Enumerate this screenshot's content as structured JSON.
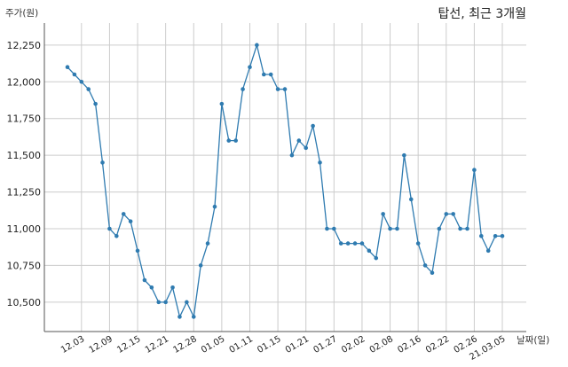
{
  "chart_data": {
    "type": "line",
    "title": "탑선, 최근 3개월",
    "ylabel": "주가(원)",
    "xlabel": "날짜(일)",
    "ylim": [
      10300,
      12400
    ],
    "yticks": [
      10500,
      10750,
      11000,
      11250,
      11500,
      11750,
      12000,
      12250
    ],
    "ytick_labels": [
      "10,500",
      "10,750",
      "11,000",
      "11,250",
      "11,500",
      "11,750",
      "12,000",
      "12,250"
    ],
    "xticks": [
      {
        "label": "12.03",
        "index": 2
      },
      {
        "label": "12.09",
        "index": 6
      },
      {
        "label": "12.15",
        "index": 10
      },
      {
        "label": "12.21",
        "index": 14
      },
      {
        "label": "12.28",
        "index": 18
      },
      {
        "label": "01.05",
        "index": 22
      },
      {
        "label": "01.11",
        "index": 26
      },
      {
        "label": "01.15",
        "index": 30
      },
      {
        "label": "01.21",
        "index": 34
      },
      {
        "label": "01.27",
        "index": 38
      },
      {
        "label": "02.02",
        "index": 42
      },
      {
        "label": "02.08",
        "index": 46
      },
      {
        "label": "02.16",
        "index": 50
      },
      {
        "label": "02.22",
        "index": 54
      },
      {
        "label": "02.26",
        "index": 58
      },
      {
        "label": "21.03.05",
        "index": 62
      }
    ],
    "grid": true,
    "line_color": "#2f7bb0",
    "series": [
      {
        "values": [
          12100,
          12050,
          12000,
          11950,
          11850,
          11450,
          11000,
          10950,
          11100,
          11050,
          10850,
          10650,
          10600,
          10500,
          10500,
          10600,
          10400,
          10500,
          10400,
          10750,
          10900,
          11150,
          11850,
          11600,
          11600,
          11950,
          12100,
          12250,
          12050,
          12050,
          11950,
          11950,
          11500,
          11600,
          11550,
          11700,
          11450,
          11000,
          11000,
          10900,
          10900,
          10900,
          10900,
          10850,
          10800,
          11100,
          11000,
          11000,
          11500,
          11200,
          10900,
          10750,
          10700,
          11000,
          11100,
          11100,
          11000,
          11000,
          11400,
          10950,
          10850,
          10950,
          10950
        ]
      }
    ]
  }
}
